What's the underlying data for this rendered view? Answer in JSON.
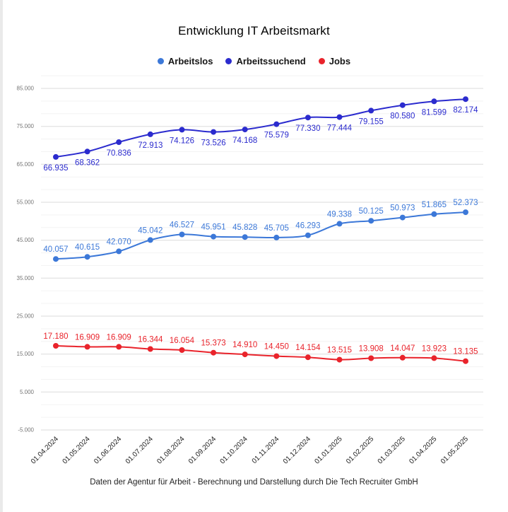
{
  "page": {
    "title": "Entwicklung IT Arbeitsmarkt",
    "footer": "Daten der Agentur für Arbeit - Berechnung und Darstellung durch Die Tech Recruiter GmbH"
  },
  "chart_data": {
    "type": "line",
    "title": "Entwicklung IT Arbeitsmarkt",
    "legend_position": "top",
    "grid": true,
    "categories": [
      "01.04.2024",
      "01.05.2024",
      "01.06.2024",
      "01.07.2024",
      "01.08.2024",
      "01.09.2024",
      "01.10.2024",
      "01.11.2024",
      "01.12.2024",
      "01.01.2025",
      "01.02.2025",
      "01.03.2025",
      "01.04.2025",
      "01.05.2025"
    ],
    "series": [
      {
        "name": "Arbeitslos",
        "color": "#3C78D8",
        "label_position": "above",
        "values": [
          40057,
          40615,
          42070,
          45042,
          46527,
          45951,
          45828,
          45705,
          46293,
          49338,
          50125,
          50973,
          51865,
          52373
        ],
        "labels": [
          "40.057",
          "40.615",
          "42.070",
          "45.042",
          "46.527",
          "45.951",
          "45.828",
          "45.705",
          "46.293",
          "49.338",
          "50.125",
          "50.973",
          "51.865",
          "52.373"
        ]
      },
      {
        "name": "Arbeitssuchend",
        "color": "#2B2BCE",
        "label_position": "below",
        "values": [
          66935,
          68362,
          70836,
          72913,
          74126,
          73526,
          74168,
          75579,
          77330,
          77444,
          79155,
          80580,
          81599,
          82174
        ],
        "labels": [
          "66.935",
          "68.362",
          "70.836",
          "72.913",
          "74.126",
          "73.526",
          "74.168",
          "75.579",
          "77.330",
          "77.444",
          "79.155",
          "80.580",
          "81.599",
          "82.174"
        ]
      },
      {
        "name": "Jobs",
        "color": "#E9232B",
        "label_position": "above",
        "values": [
          17180,
          16909,
          16909,
          16344,
          16054,
          15373,
          14910,
          14450,
          14154,
          13515,
          13908,
          14047,
          13923,
          13135
        ],
        "labels": [
          "17.180",
          "16.909",
          "16.909",
          "16.344",
          "16.054",
          "15.373",
          "14.910",
          "14.450",
          "14.154",
          "13.515",
          "13.908",
          "14.047",
          "13.923",
          "13.135"
        ]
      }
    ],
    "y_axis": {
      "min": -5000,
      "max": 85000,
      "tick_step": 10000,
      "tick_labels": [
        "85.000",
        "75.000",
        "65.000",
        "55.000",
        "45.000",
        "35.000",
        "25.000",
        "15.000",
        "5.000",
        "-5.000"
      ]
    },
    "xlabel": "",
    "ylabel": ""
  }
}
